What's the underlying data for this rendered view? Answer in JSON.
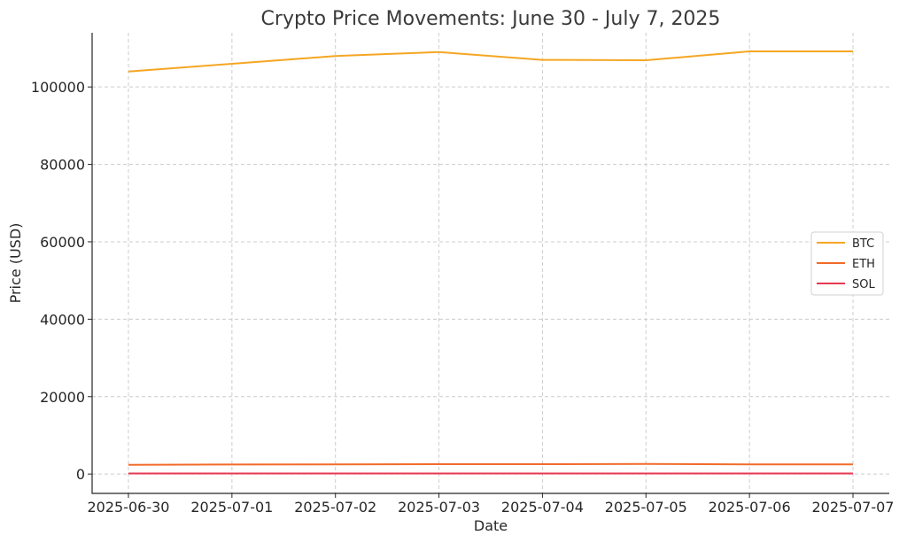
{
  "chart_data": {
    "type": "line",
    "title": "Crypto Price Movements: June 30 - July 7, 2025",
    "xlabel": "Date",
    "ylabel": "Price (USD)",
    "x": [
      "2025-06-30",
      "2025-07-01",
      "2025-07-02",
      "2025-07-03",
      "2025-07-04",
      "2025-07-05",
      "2025-07-06",
      "2025-07-07"
    ],
    "ylim": [
      -5000,
      114000
    ],
    "yticks": [
      0,
      20000,
      40000,
      60000,
      80000,
      100000
    ],
    "grid": true,
    "legend_position": "center-right",
    "series": [
      {
        "name": "BTC",
        "color": "#f5a623",
        "values": [
          104000,
          106000,
          108000,
          109000,
          107000,
          106900,
          109200,
          109200
        ]
      },
      {
        "name": "ETH",
        "color": "#f26b2a",
        "values": [
          2400,
          2450,
          2500,
          2550,
          2550,
          2600,
          2500,
          2500
        ]
      },
      {
        "name": "SOL",
        "color": "#e8384f",
        "values": [
          150,
          150,
          155,
          155,
          150,
          155,
          150,
          152
        ]
      }
    ]
  }
}
